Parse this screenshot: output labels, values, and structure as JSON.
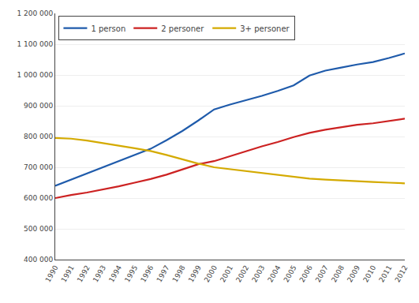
{
  "chart_data": {
    "type": "line",
    "x": [
      1990,
      1991,
      1992,
      1993,
      1994,
      1995,
      1996,
      1997,
      1998,
      1999,
      2000,
      2001,
      2002,
      2003,
      2004,
      2005,
      2006,
      2007,
      2008,
      2009,
      2010,
      2011,
      2012
    ],
    "series": [
      {
        "name": "1 person",
        "color": "#1f5bab",
        "values": [
          640000,
          660000,
          678000,
          698000,
          718000,
          738000,
          760000,
          788000,
          818000,
          852000,
          888000,
          904000,
          918000,
          932000,
          948000,
          966000,
          998000,
          1014000,
          1024000,
          1034000,
          1042000,
          1055000,
          1070000
        ]
      },
      {
        "name": "2 personer",
        "color": "#cc2222",
        "values": [
          600000,
          610000,
          618000,
          628000,
          638000,
          650000,
          662000,
          676000,
          693000,
          710000,
          720000,
          735000,
          752000,
          768000,
          782000,
          798000,
          812000,
          822000,
          830000,
          838000,
          843000,
          850000,
          858000
        ]
      },
      {
        "name": "3+ personer",
        "color": "#d4aa00",
        "values": [
          795000,
          793000,
          787000,
          778000,
          770000,
          762000,
          753000,
          740000,
          726000,
          712000,
          700000,
          694000,
          687000,
          681000,
          675000,
          669000,
          663000,
          660000,
          657000,
          654000,
          652000,
          650000,
          648000
        ]
      }
    ],
    "xlim": [
      1990,
      2012
    ],
    "xticks": [
      1990,
      1991,
      1992,
      1993,
      1994,
      1995,
      1996,
      1997,
      1998,
      1999,
      2000,
      2001,
      2002,
      2003,
      2004,
      2005,
      2006,
      2007,
      2008,
      2009,
      2010,
      2011,
      2012
    ],
    "ylim": [
      400000,
      1200000
    ],
    "yticks": [
      {
        "value": 400000,
        "label": "400 000"
      },
      {
        "value": 500000,
        "label": "500 000"
      },
      {
        "value": 600000,
        "label": "600 000"
      },
      {
        "value": 700000,
        "label": "700 000"
      },
      {
        "value": 800000,
        "label": "800 000"
      },
      {
        "value": 900000,
        "label": "900 000"
      },
      {
        "value": 1000000,
        "label": "1 000 000"
      },
      {
        "value": 1100000,
        "label": "1 100 000"
      },
      {
        "value": 1200000,
        "label": "1 200 000"
      }
    ],
    "grid": "y",
    "legend": "upper left"
  }
}
